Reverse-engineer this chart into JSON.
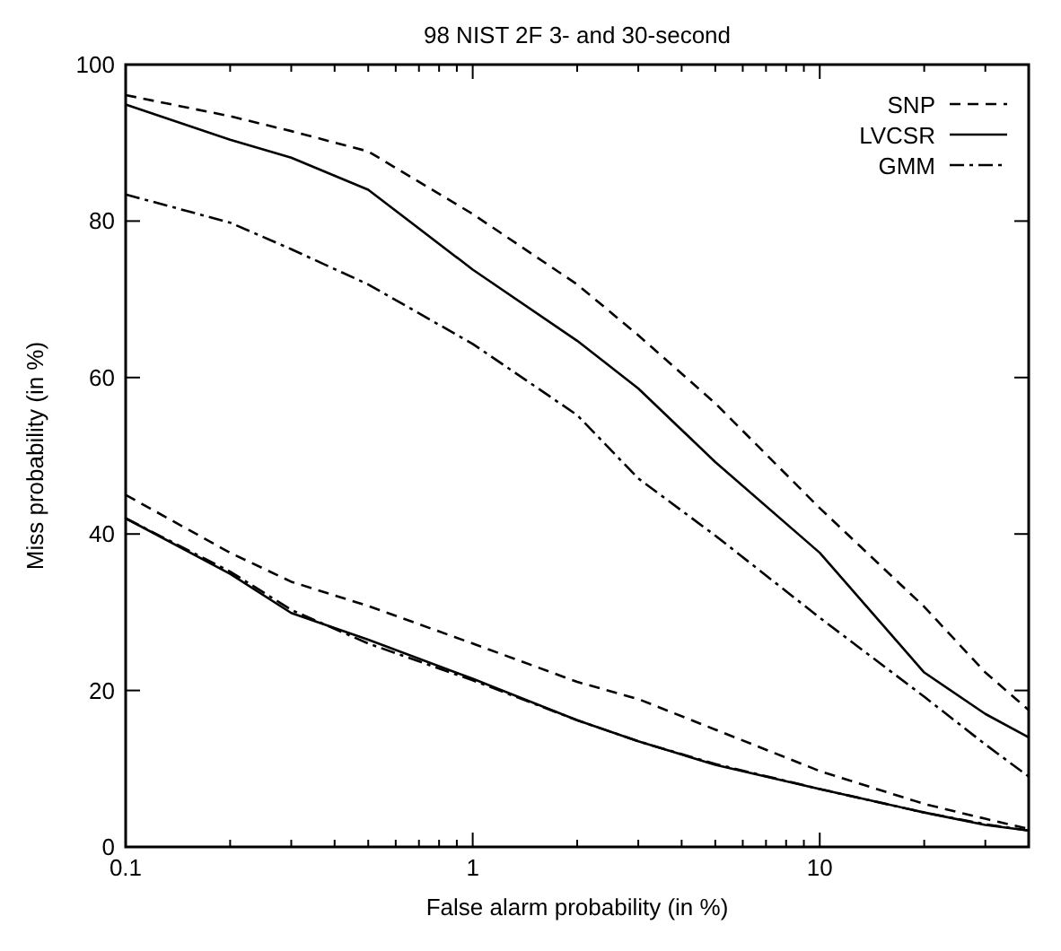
{
  "chart_data": {
    "type": "line",
    "title": "98 NIST 2F 3- and 30-second",
    "xlabel": "False alarm probability (in %)",
    "ylabel": "Miss probability (in %)",
    "log": "x",
    "xlim": [
      0.1,
      40
    ],
    "ylim": [
      0,
      100
    ],
    "xticks": [
      0.1,
      {
        "value": 0.2,
        "label": null
      },
      {
        "value": 0.3,
        "label": null
      },
      {
        "value": 0.4,
        "label": null
      },
      {
        "value": 0.5,
        "label": null
      },
      {
        "value": 0.6,
        "label": null
      },
      {
        "value": 0.7,
        "label": null
      },
      {
        "value": 0.8,
        "label": null
      },
      {
        "value": 0.9,
        "label": null
      },
      1,
      {
        "value": 2,
        "label": null
      },
      {
        "value": 3,
        "label": null
      },
      {
        "value": 4,
        "label": null
      },
      {
        "value": 5,
        "label": null
      },
      {
        "value": 6,
        "label": null
      },
      {
        "value": 7,
        "label": null
      },
      {
        "value": 8,
        "label": null
      },
      {
        "value": 9,
        "label": null
      },
      10,
      {
        "value": 20,
        "label": null
      },
      {
        "value": 30,
        "label": null
      }
    ],
    "yticks": [
      0,
      20,
      40,
      60,
      80,
      100
    ],
    "grid": false,
    "legend": "top right",
    "marker": "none",
    "x": [
      0.1,
      0.2,
      0.3,
      0.5,
      1,
      2,
      3,
      5,
      10,
      20,
      30,
      40
    ],
    "series": [
      {
        "name": "SNP",
        "color": "#000000",
        "line_style": "dashed",
        "values": [
          96.1,
          93.4,
          91.5,
          88.9,
          80.9,
          71.9,
          65.4,
          56.7,
          43.3,
          30.7,
          22.3,
          17.5
        ]
      },
      {
        "name": "LVCSR",
        "color": "#000000",
        "line_style": "solid",
        "values": [
          94.9,
          90.4,
          88.1,
          84,
          73.8,
          64.7,
          58.6,
          49.2,
          37.6,
          22.3,
          17,
          14
        ]
      },
      {
        "name": "GMM",
        "color": "#000000",
        "line_style": "dashdot",
        "values": [
          83.4,
          79.8,
          76.4,
          71.9,
          64.3,
          55.2,
          47.1,
          39.8,
          29.3,
          19.2,
          13.1,
          9
        ]
      },
      {
        "color": "#000000",
        "line_style": "dashed",
        "values": [
          45,
          37.6,
          33.9,
          30.8,
          26,
          21.1,
          18.9,
          15,
          9.7,
          5.5,
          3.6,
          2.3
        ]
      },
      {
        "color": "#000000",
        "line_style": "solid",
        "values": [
          42,
          34.9,
          29.9,
          26.5,
          21.5,
          16.2,
          13.5,
          10.5,
          7.4,
          4.4,
          2.8,
          2.1
        ]
      },
      {
        "color": "#000000",
        "line_style": "dashdot",
        "values": [
          42,
          35.2,
          30.3,
          26,
          21.3,
          16.2,
          13.5,
          10.6,
          7.4,
          4.4,
          2.9,
          2.1
        ]
      }
    ]
  }
}
